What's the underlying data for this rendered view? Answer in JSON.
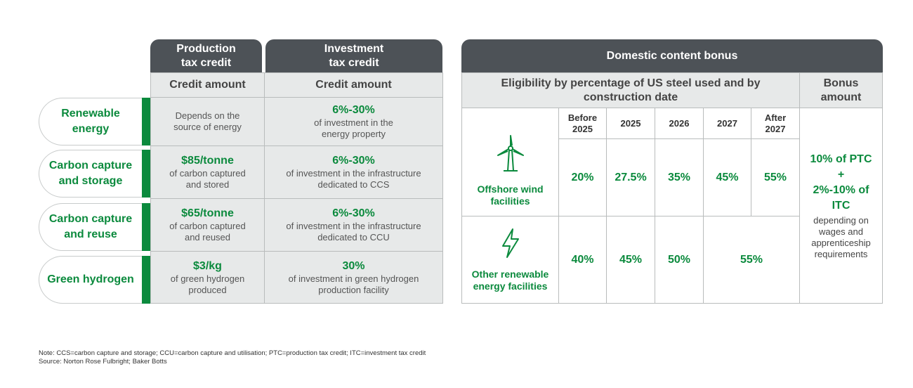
{
  "left_table": {
    "header": {
      "ptc": "Production tax credit",
      "itc": "Investment tax credit"
    },
    "subheader": {
      "ptc": "Credit amount",
      "itc": "Credit amount"
    },
    "rows": [
      {
        "label": "Renewable energy",
        "ptc": {
          "desc": "Depends on the source of energy"
        },
        "itc": {
          "amount": "6%-30%",
          "desc": "of investment in the energy property"
        }
      },
      {
        "label": "Carbon capture and storage",
        "ptc": {
          "amount": "$85/tonne",
          "desc": "of carbon captured and stored"
        },
        "itc": {
          "amount": "6%-30%",
          "desc": "of investment in the infrastructure dedicated to CCS"
        }
      },
      {
        "label": "Carbon capture and reuse",
        "ptc": {
          "amount": "$65/tonne",
          "desc": "of carbon captured and reused"
        },
        "itc": {
          "amount": "6%-30%",
          "desc": "of investment in the infrastructure dedicated to CCU"
        }
      },
      {
        "label": "Green hydrogen",
        "ptc": {
          "amount": "$3/kg",
          "desc": "of green hydrogen produced"
        },
        "itc": {
          "amount": "30%",
          "desc": "of investment in green hydrogen production facility"
        }
      }
    ]
  },
  "right_table": {
    "title": "Domestic content bonus",
    "eligibility_header": "Eligibility by percentage of US steel used and by construction date",
    "bonus_header": "Bonus amount",
    "periods": [
      "Before 2025",
      "2025",
      "2026",
      "2027",
      "After 2027"
    ],
    "rows": [
      {
        "label": "Offshore wind facilities",
        "values": [
          "20%",
          "27.5%",
          "35%",
          "45%",
          "55%"
        ]
      },
      {
        "label": "Other renewable energy facilities",
        "values": [
          "40%",
          "45%",
          "50%",
          "55%"
        ]
      }
    ],
    "bonus": {
      "line1": "10% of PTC",
      "plus": "+",
      "line2": "2%-10% of ITC",
      "note": "depending on wages and apprenticeship requirements"
    }
  },
  "notes": {
    "note": "Note: CCS=carbon capture and storage; CCU=carbon capture and utilisation; PTC=production tax credit; ITC=investment tax credit",
    "source": "Source: Norton Rose Fulbright; Baker Botts"
  }
}
